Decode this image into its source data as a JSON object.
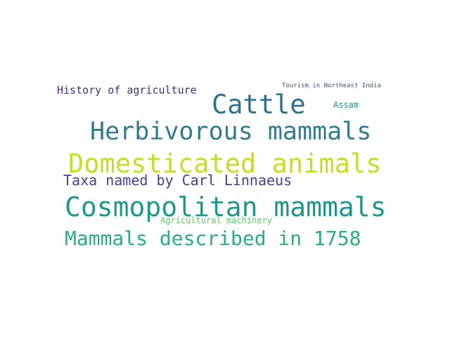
{
  "words": [
    {
      "id": "w0",
      "text": "History of agriculture",
      "color": "#472d7b"
    },
    {
      "id": "w1",
      "text": "Tourism in Northeast India",
      "color": "#3b528b"
    },
    {
      "id": "w2",
      "text": "Cattle",
      "color": "#2c728e"
    },
    {
      "id": "w3",
      "text": "Assam",
      "color": "#21918c"
    },
    {
      "id": "w4",
      "text": "Herbivorous mammals",
      "color": "#2f7c8e"
    },
    {
      "id": "w5",
      "text": "Domesticated animals",
      "color": "#c2df23"
    },
    {
      "id": "w6",
      "text": "Taxa named by Carl Linnaeus",
      "color": "#414487"
    },
    {
      "id": "w7",
      "text": "Cosmopolitan mammals",
      "color": "#1f988b"
    },
    {
      "id": "w8",
      "text": "Agricultural machinery",
      "color": "#5ec962"
    },
    {
      "id": "w9",
      "text": "Mammals described in 1758",
      "color": "#28ae80"
    }
  ]
}
